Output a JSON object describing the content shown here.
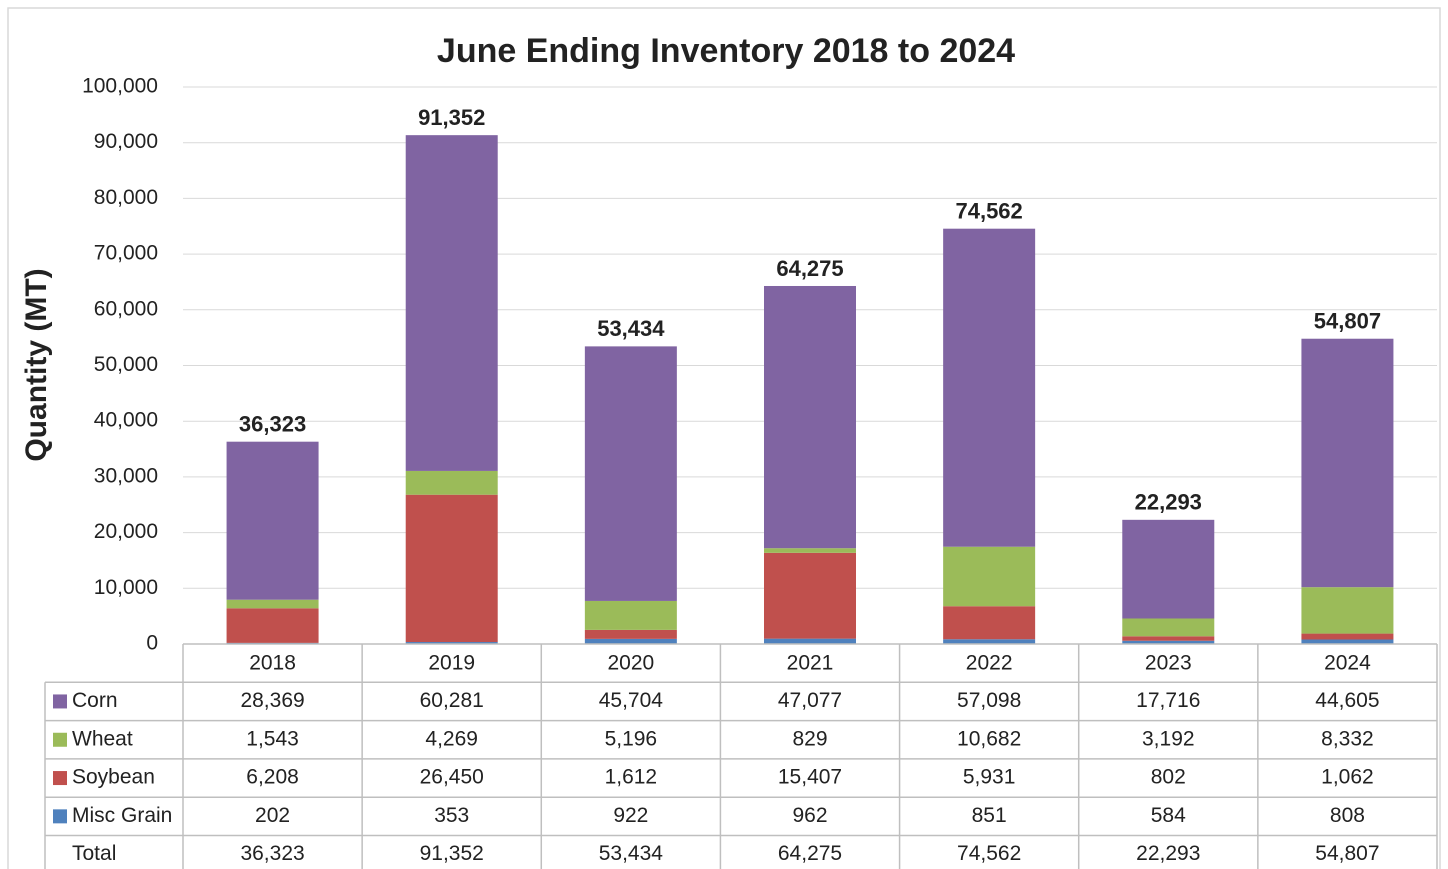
{
  "chart_data": {
    "type": "stacked_bar",
    "title": "June  Ending Inventory 2018 to 2024",
    "y_label": "Quantity (MT)",
    "categories": [
      "2018",
      "2019",
      "2020",
      "2021",
      "2022",
      "2023",
      "2024"
    ],
    "series": [
      {
        "name": "Corn",
        "color": "#8064a2",
        "values": [
          28369,
          60281,
          45704,
          47077,
          57098,
          17716,
          44605
        ],
        "value_labels": [
          "28,369",
          "60,281",
          "45,704",
          "47,077",
          "57,098",
          "17,716",
          "44,605"
        ]
      },
      {
        "name": "Wheat",
        "color": "#9bbb59",
        "values": [
          1543,
          4269,
          5196,
          829,
          10682,
          3192,
          8332
        ],
        "value_labels": [
          "1,543",
          "4,269",
          "5,196",
          "829",
          "10,682",
          "3,192",
          "8,332"
        ]
      },
      {
        "name": "Soybean",
        "color": "#c0504d",
        "values": [
          6208,
          26450,
          1612,
          15407,
          5931,
          802,
          1062
        ],
        "value_labels": [
          "6,208",
          "26,450",
          "1,612",
          "15,407",
          "5,931",
          "802",
          "1,062"
        ]
      },
      {
        "name": "Misc Grain",
        "color": "#4f81bd",
        "values": [
          202,
          353,
          922,
          962,
          851,
          584,
          808
        ],
        "value_labels": [
          "202",
          "353",
          "922",
          "962",
          "851",
          "584",
          "808"
        ]
      }
    ],
    "totals": {
      "name": "Total",
      "values": [
        36323,
        91352,
        53434,
        64275,
        74562,
        22293,
        54807
      ],
      "value_labels": [
        "36,323",
        "91,352",
        "53,434",
        "64,275",
        "74,562",
        "22,293",
        "54,807"
      ]
    },
    "ylim": [
      0,
      100000
    ],
    "yticks": [
      0,
      {
        "value": 10000,
        "label": "10,000"
      },
      {
        "value": 20000,
        "label": "20,000"
      },
      {
        "value": 30000,
        "label": "30,000"
      },
      {
        "value": 40000,
        "label": "40,000"
      },
      {
        "value": 50000,
        "label": "50,000"
      },
      {
        "value": 60000,
        "label": "60,000"
      },
      {
        "value": 70000,
        "label": "70,000"
      },
      {
        "value": 80000,
        "label": "80,000"
      },
      {
        "value": 90000,
        "label": "90,000"
      },
      {
        "value": 100000,
        "label": "100,000"
      }
    ],
    "grid": true
  }
}
